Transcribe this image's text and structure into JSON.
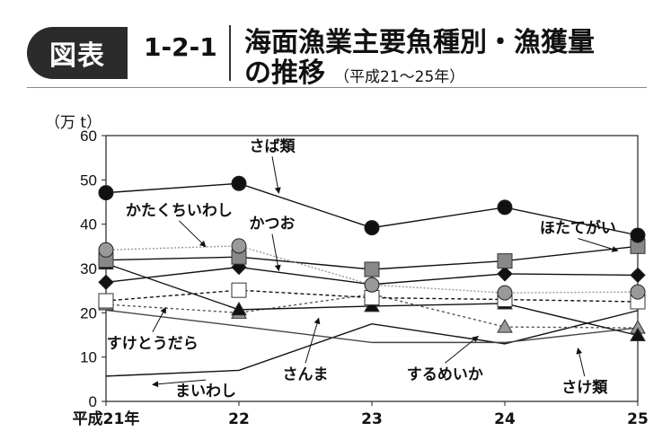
{
  "header": {
    "badge": "図表",
    "number": "1-2-1",
    "title_line1": "海面漁業主要魚種別・漁獲量",
    "title_line2": "の推移",
    "subtitle": "（平成21〜25年）"
  },
  "chart_data": {
    "type": "line",
    "ylabel": "（万 t）",
    "ylim": [
      0,
      60
    ],
    "yticks": [
      0,
      10,
      20,
      30,
      40,
      50,
      60
    ],
    "categories": [
      "平成21年",
      "22",
      "23",
      "24",
      "25"
    ],
    "grid": false,
    "series": [
      {
        "name": "さば類",
        "values": [
          47.1,
          49.2,
          39.2,
          43.8,
          37.5
        ],
        "color": "#111111",
        "marker": "circle",
        "fill": "#111111",
        "dash": "none"
      },
      {
        "name": "かたくちいわし",
        "values": [
          34.2,
          35.1,
          26.3,
          24.5,
          24.7
        ],
        "color": "#999999",
        "marker": "circle",
        "fill": "#999999",
        "dash": "2,2"
      },
      {
        "name": "ほたてがい",
        "values": [
          31.9,
          32.6,
          29.8,
          31.7,
          35.0
        ],
        "color": "#111111",
        "marker": "square",
        "fill": "#888888",
        "dash": "none"
      },
      {
        "name": "かつお",
        "values": [
          26.9,
          30.3,
          26.4,
          28.8,
          28.5
        ],
        "color": "#111111",
        "marker": "diamond",
        "fill": "#111111",
        "dash": "none"
      },
      {
        "name": "すけとうだら",
        "values": [
          22.7,
          25.1,
          23.4,
          23.0,
          22.5
        ],
        "color": "#111111",
        "marker": "square",
        "fill": "#ffffff",
        "dash": "4,3"
      },
      {
        "name": "するめいか",
        "values": [
          21.9,
          20.0,
          24.2,
          16.8,
          16.6
        ],
        "color": "#555555",
        "marker": "triangle",
        "fill": "#999999",
        "dash": "3,3"
      },
      {
        "name": "さんま",
        "values": [
          31.1,
          20.7,
          21.5,
          22.1,
          14.9
        ],
        "color": "#111111",
        "marker": "triangle",
        "fill": "#111111",
        "dash": "none"
      },
      {
        "name": "さけ類",
        "values": [
          20.6,
          17.0,
          13.3,
          13.3,
          16.6
        ],
        "color": "#444444",
        "marker": "none",
        "fill": "none",
        "dash": "none"
      },
      {
        "name": "まいわし",
        "values": [
          5.7,
          7.0,
          17.5,
          13.0,
          20.5
        ],
        "color": "#111111",
        "marker": "none",
        "fill": "none",
        "dash": "none"
      }
    ],
    "annotations": [
      {
        "text": "さば類"
      },
      {
        "text": "かたくちいわし"
      },
      {
        "text": "かつお"
      },
      {
        "text": "ほたてがい"
      },
      {
        "text": "すけとうだら"
      },
      {
        "text": "さんま"
      },
      {
        "text": "するめいか"
      },
      {
        "text": "まいわし"
      },
      {
        "text": "さけ類"
      }
    ]
  }
}
